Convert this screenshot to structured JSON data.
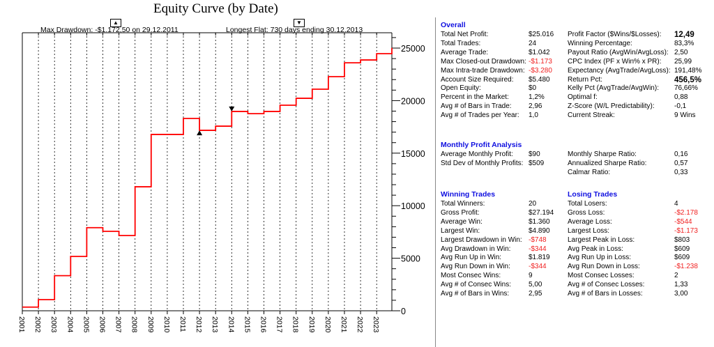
{
  "chart_data": {
    "type": "line",
    "title": "Equity Curve (by Date)",
    "annotations": {
      "max_drawdown": "Max Drawdown: -$1.172,50 on 29.12.2011",
      "longest_flat": "Longest Flat: 730 days ending 30.12.2013"
    },
    "x_tick_labels": [
      "2001",
      "2002",
      "2003",
      "2004",
      "2005",
      "2006",
      "2007",
      "2008",
      "2009",
      "2010",
      "2011",
      "2012",
      "2013",
      "2014",
      "2015",
      "2016",
      "2017",
      "2018",
      "2019",
      "2020",
      "2021",
      "2022",
      "2023"
    ],
    "y_tick_labels": [
      "0",
      "5000",
      "10000",
      "15000",
      "20000",
      "25000"
    ],
    "ylim": [
      0,
      26000
    ],
    "step": true,
    "line_color": "#ff0000",
    "grid": "vertical dotted",
    "x": [
      2001,
      2002,
      2003,
      2004,
      2005,
      2006,
      2007,
      2008,
      2009,
      2010,
      2011,
      2012,
      2013,
      2014,
      2015,
      2016,
      2017,
      2018,
      2019,
      2020,
      2021,
      2022,
      2023,
      2024
    ],
    "values": [
      350,
      1060,
      3340,
      5170,
      7910,
      7560,
      7160,
      11800,
      16780,
      16780,
      18300,
      17170,
      17570,
      18970,
      18760,
      18970,
      19560,
      20220,
      21090,
      22280,
      23600,
      23870,
      24470,
      25016
    ],
    "markers": [
      {
        "x": 2012,
        "type": "up-triangle"
      },
      {
        "x": 2014,
        "type": "down-triangle"
      }
    ]
  },
  "panel": {
    "overall": {
      "title": "Overall",
      "rows": [
        [
          "Total Net Profit:",
          "$25.016",
          "Profit Factor ($Wins/$Losses):",
          "12,49"
        ],
        [
          "Total Trades:",
          "24",
          "Winning Percentage:",
          "83,3%"
        ],
        [
          "Average Trade:",
          "$1.042",
          "Payout Ratio (AvgWin/AvgLoss):",
          "2,50"
        ],
        [
          "Max Closed-out Drawdown:",
          "-$1.173",
          "CPC Index (PF x Win% x PR):",
          "25,99"
        ],
        [
          "Max Intra-trade Drawdown:",
          "-$3.280",
          "Expectancy (AvgTrade/AvgLoss):",
          "191,48%"
        ],
        [
          "Account Size Required:",
          "$5.480",
          "Return Pct:",
          "456,5%"
        ],
        [
          "Open Equity:",
          "$0",
          "Kelly Pct (AvgTrade/AvgWin):",
          "76,66%"
        ],
        [
          "Percent in the Market:",
          "1,2%",
          "Optimal f:",
          "0,88"
        ],
        [
          "Avg # of Bars in Trade:",
          "2,96",
          "Z-Score (W/L Predictability):",
          "-0,1"
        ],
        [
          "Avg # of Trades per Year:",
          "1,0",
          "Current Streak:",
          "9 Wins"
        ]
      ]
    },
    "monthly": {
      "title": "Monthly Profit Analysis",
      "rows": [
        [
          "Average Monthly Profit:",
          "$90",
          "Monthly Sharpe Ratio:",
          "0,16"
        ],
        [
          "Std Dev of Monthly Profits:",
          "$509",
          "Annualized Sharpe Ratio:",
          "0,57"
        ],
        [
          "",
          "",
          "Calmar Ratio:",
          "0,33"
        ]
      ]
    },
    "trades": {
      "win_title": "Winning Trades",
      "loss_title": "Losing Trades",
      "rows": [
        [
          "Total Winners:",
          "20",
          "Total Losers:",
          "4"
        ],
        [
          "Gross Profit:",
          "$27.194",
          "Gross Loss:",
          "-$2.178"
        ],
        [
          "Average Win:",
          "$1.360",
          "Average Loss:",
          "-$544"
        ],
        [
          "Largest Win:",
          "$4.890",
          "Largest Loss:",
          "-$1.173"
        ],
        [
          "Largest Drawdown in Win:",
          "-$748",
          "Largest Peak in Loss:",
          "$803"
        ],
        [
          "Avg Drawdown in Win:",
          "-$344",
          "Avg Peak in Loss:",
          "$609"
        ],
        [
          "Avg Run Up in Win:",
          "$1.819",
          "Avg Run Up in Loss:",
          "$609"
        ],
        [
          "Avg Run Down in Win:",
          "-$344",
          "Avg Run Down in Loss:",
          "-$1.238"
        ],
        [
          "Most Consec Wins:",
          "9",
          "Most Consec Losses:",
          "2"
        ],
        [
          "Avg # of Consec Wins:",
          "5,00",
          "Avg # of Consec Losses:",
          "1,33"
        ],
        [
          "Avg # of Bars in Wins:",
          "2,95",
          "Avg # of Bars in Losses:",
          "3,00"
        ]
      ]
    },
    "negative_color": "#f02020",
    "heading_color": "#1010e0"
  }
}
